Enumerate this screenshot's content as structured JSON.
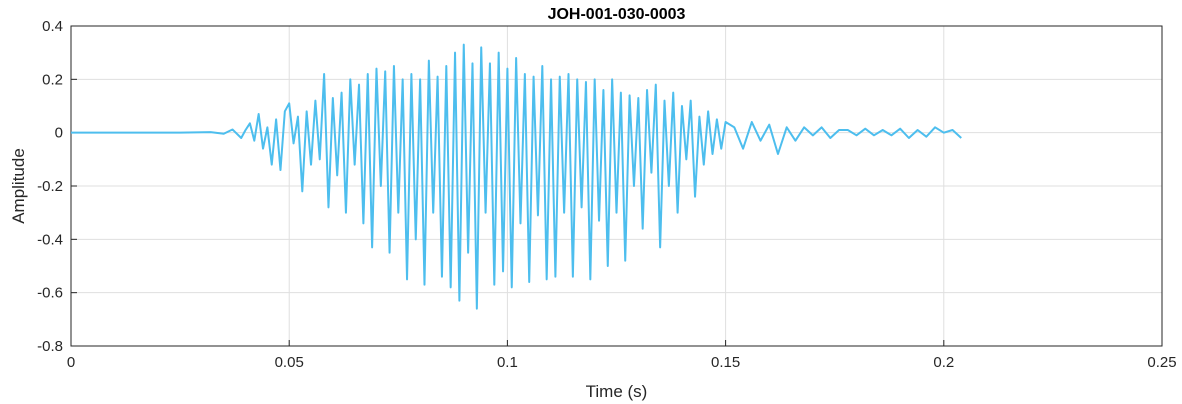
{
  "chart_data": {
    "type": "line",
    "title": "JOH-001-030-0003",
    "xlabel": "Time (s)",
    "ylabel": "Amplitude",
    "xlim": [
      0,
      0.25
    ],
    "ylim": [
      -0.8,
      0.4
    ],
    "xticks": [
      0,
      0.05,
      0.1,
      0.15,
      0.2,
      0.25
    ],
    "xtick_labels": [
      "0",
      "0.05",
      "0.1",
      "0.15",
      "0.2",
      "0.25"
    ],
    "yticks": [
      -0.8,
      -0.6,
      -0.4,
      -0.2,
      0,
      0.2,
      0.4
    ],
    "ytick_labels": [
      "-0.8",
      "-0.6",
      "-0.4",
      "-0.2",
      "0",
      "0.2",
      "0.4"
    ],
    "grid": true,
    "legend": "none",
    "line_color": "#4DBEEE",
    "series": [
      {
        "x": [
          0,
          0.025,
          0.032,
          0.035,
          0.037,
          0.039,
          0.04,
          0.041,
          0.042,
          0.043,
          0.044,
          0.045,
          0.046,
          0.047,
          0.048,
          0.049,
          0.05,
          0.051,
          0.052,
          0.053,
          0.054,
          0.055,
          0.056,
          0.057,
          0.058,
          0.059,
          0.06,
          0.061,
          0.062,
          0.063,
          0.064,
          0.065,
          0.066,
          0.067,
          0.068,
          0.069,
          0.07,
          0.071,
          0.072,
          0.073,
          0.074,
          0.075,
          0.076,
          0.077,
          0.078,
          0.079,
          0.08,
          0.081,
          0.082,
          0.083,
          0.084,
          0.085,
          0.086,
          0.087,
          0.088,
          0.089,
          0.09,
          0.091,
          0.092,
          0.093,
          0.094,
          0.095,
          0.096,
          0.097,
          0.098,
          0.099,
          0.1,
          0.101,
          0.102,
          0.103,
          0.104,
          0.105,
          0.106,
          0.107,
          0.108,
          0.109,
          0.11,
          0.111,
          0.112,
          0.113,
          0.114,
          0.115,
          0.116,
          0.117,
          0.118,
          0.119,
          0.12,
          0.121,
          0.122,
          0.123,
          0.124,
          0.125,
          0.126,
          0.127,
          0.128,
          0.129,
          0.13,
          0.131,
          0.132,
          0.133,
          0.134,
          0.135,
          0.136,
          0.137,
          0.138,
          0.139,
          0.14,
          0.141,
          0.142,
          0.143,
          0.144,
          0.145,
          0.146,
          0.147,
          0.148,
          0.149,
          0.15,
          0.152,
          0.154,
          0.156,
          0.158,
          0.16,
          0.162,
          0.164,
          0.166,
          0.168,
          0.17,
          0.172,
          0.174,
          0.176,
          0.178,
          0.18,
          0.182,
          0.184,
          0.186,
          0.188,
          0.19,
          0.192,
          0.194,
          0.196,
          0.198,
          0.2,
          0.202,
          0.204
        ],
        "y": [
          0,
          0,
          0.002,
          -0.004,
          0.012,
          -0.02,
          0.01,
          0.035,
          -0.03,
          0.07,
          -0.06,
          0.02,
          -0.12,
          0.05,
          -0.14,
          0.08,
          0.11,
          -0.04,
          0.06,
          -0.22,
          0.08,
          -0.12,
          0.12,
          -0.1,
          0.22,
          -0.28,
          0.13,
          -0.16,
          0.15,
          -0.3,
          0.2,
          -0.12,
          0.18,
          -0.34,
          0.22,
          -0.43,
          0.24,
          -0.2,
          0.23,
          -0.45,
          0.25,
          -0.3,
          0.2,
          -0.55,
          0.22,
          -0.4,
          0.2,
          -0.57,
          0.27,
          -0.3,
          0.21,
          -0.54,
          0.25,
          -0.58,
          0.3,
          -0.63,
          0.33,
          -0.45,
          0.26,
          -0.66,
          0.32,
          -0.3,
          0.26,
          -0.57,
          0.3,
          -0.52,
          0.24,
          -0.58,
          0.28,
          -0.34,
          0.22,
          -0.56,
          0.21,
          -0.31,
          0.25,
          -0.55,
          0.2,
          -0.54,
          0.21,
          -0.3,
          0.22,
          -0.54,
          0.2,
          -0.28,
          0.19,
          -0.55,
          0.2,
          -0.33,
          0.16,
          -0.5,
          0.2,
          -0.3,
          0.15,
          -0.48,
          0.14,
          -0.2,
          0.13,
          -0.36,
          0.16,
          -0.15,
          0.18,
          -0.43,
          0.12,
          -0.2,
          0.15,
          -0.3,
          0.1,
          -0.1,
          0.12,
          -0.24,
          0.06,
          -0.12,
          0.08,
          -0.08,
          0.05,
          -0.06,
          0.04,
          0.02,
          -0.06,
          0.04,
          -0.03,
          0.03,
          -0.08,
          0.02,
          -0.03,
          0.02,
          -0.01,
          0.02,
          -0.02,
          0.01,
          0.01,
          -0.01,
          0.015,
          -0.01,
          0.01,
          -0.01,
          0.015,
          -0.02,
          0.01,
          -0.015,
          0.02,
          0.0,
          0.01,
          -0.02
        ]
      }
    ]
  }
}
